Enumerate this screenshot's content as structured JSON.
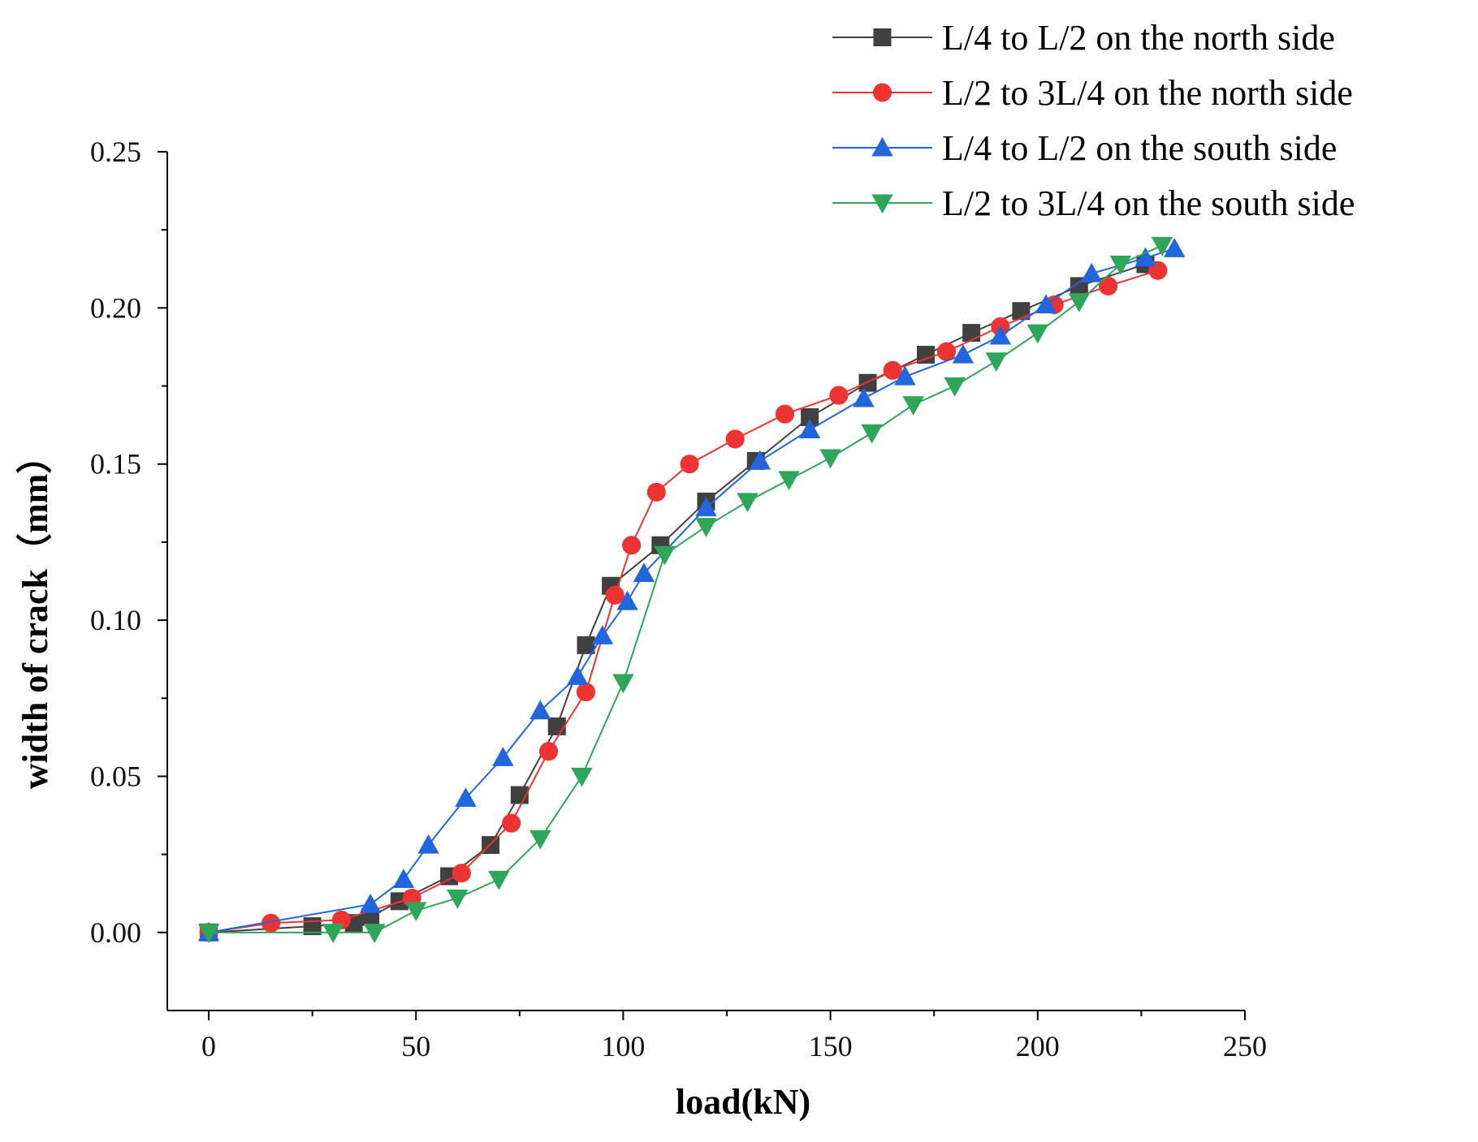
{
  "chart_data": {
    "type": "line",
    "title": "",
    "xlabel": "load(kN)",
    "ylabel": "width of crack（mm）",
    "xlim": [
      -10,
      250
    ],
    "ylim": [
      -0.025,
      0.25
    ],
    "xticks": [
      0,
      50,
      100,
      150,
      200,
      250
    ],
    "xtick_labels": [
      "0",
      "50",
      "100",
      "150",
      "200",
      "250"
    ],
    "yticks": [
      0.0,
      0.05,
      0.1,
      0.15,
      0.2,
      0.25
    ],
    "ytick_labels": [
      "0.00",
      "0.05",
      "0.10",
      "0.15",
      "0.20",
      "0.25"
    ],
    "grid": false,
    "legend_position": "top-right",
    "series": [
      {
        "name": "L/4 to L/2 on the north side",
        "color": "#404040",
        "marker": "square",
        "x": [
          0,
          25,
          35,
          39,
          46,
          58,
          68,
          75,
          84,
          91,
          97,
          109,
          120,
          132,
          145,
          159,
          173,
          184,
          196,
          210,
          226
        ],
        "y": [
          0,
          0.002,
          0.003,
          0.005,
          0.01,
          0.018,
          0.028,
          0.044,
          0.066,
          0.092,
          0.111,
          0.124,
          0.138,
          0.151,
          0.165,
          0.176,
          0.185,
          0.192,
          0.199,
          0.207,
          0.214
        ]
      },
      {
        "name": "L/2 to 3L/4 on the north side",
        "color": "#ee3333",
        "marker": "circle",
        "x": [
          0,
          15,
          32,
          49,
          61,
          73,
          82,
          91,
          98,
          102,
          108,
          116,
          127,
          139,
          152,
          165,
          178,
          191,
          204,
          217,
          229
        ],
        "y": [
          0,
          0.003,
          0.004,
          0.011,
          0.019,
          0.035,
          0.058,
          0.077,
          0.108,
          0.124,
          0.141,
          0.15,
          0.158,
          0.166,
          0.172,
          0.18,
          0.186,
          0.194,
          0.201,
          0.207,
          0.212
        ]
      },
      {
        "name": "L/4 to L/2 on the south side",
        "color": "#2266dd",
        "marker": "triangle-up",
        "x": [
          0,
          39,
          47,
          53,
          62,
          71,
          80,
          89,
          95,
          101,
          105,
          120,
          133,
          145,
          158,
          168,
          182,
          191,
          202,
          213,
          226,
          233
        ],
        "y": [
          0,
          0.009,
          0.017,
          0.028,
          0.043,
          0.056,
          0.071,
          0.082,
          0.095,
          0.106,
          0.115,
          0.136,
          0.151,
          0.161,
          0.171,
          0.178,
          0.185,
          0.191,
          0.201,
          0.211,
          0.216,
          0.219
        ]
      },
      {
        "name": "L/2 to 3L/4 on the south side",
        "color": "#2ea65a",
        "marker": "triangle-down",
        "x": [
          0,
          30,
          40,
          50,
          60,
          70,
          80,
          90,
          100,
          110,
          120,
          130,
          140,
          150,
          160,
          170,
          180,
          190,
          200,
          210,
          220,
          230
        ],
        "y": [
          0,
          0,
          0,
          0.007,
          0.011,
          0.017,
          0.03,
          0.05,
          0.08,
          0.121,
          0.13,
          0.138,
          0.145,
          0.152,
          0.16,
          0.169,
          0.175,
          0.183,
          0.192,
          0.202,
          0.214,
          0.22
        ]
      }
    ]
  }
}
